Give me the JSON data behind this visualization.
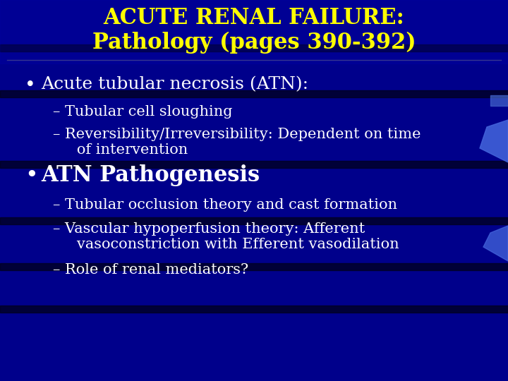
{
  "title_line1": "ACUTE RENAL FAILURE:",
  "title_line2": "Pathology (pages 390-392)",
  "title_color": "#FFFF00",
  "background_color": "#00008B",
  "text_color": "#FFFFFF",
  "title_fontsize": 22,
  "bullet_fontsize": 18,
  "sub_fontsize": 15,
  "atn_fontsize": 22,
  "stripe_color": "#000033",
  "stripe_alpha": 0.7,
  "accent_color": "#3355CC",
  "content": [
    {
      "type": "bullet",
      "text": "Acute tubular necrosis (ATN):",
      "bold": false,
      "large": false
    },
    {
      "type": "sub",
      "text": "– Tubular cell sloughing"
    },
    {
      "type": "sub2",
      "text": "– Reversibility/Irreversibility: Dependent on time",
      "cont": "   of intervention"
    },
    {
      "type": "bullet",
      "text": "ATN Pathogenesis",
      "bold": true,
      "large": true
    },
    {
      "type": "sub",
      "text": "– Tubular occlusion theory and cast formation"
    },
    {
      "type": "sub2",
      "text": "– Vascular hypoperfusion theory: Afferent",
      "cont": "   vasoconstriction with Efferent vasodilation"
    },
    {
      "type": "sub",
      "text": "– Role of renal mediators?"
    }
  ]
}
